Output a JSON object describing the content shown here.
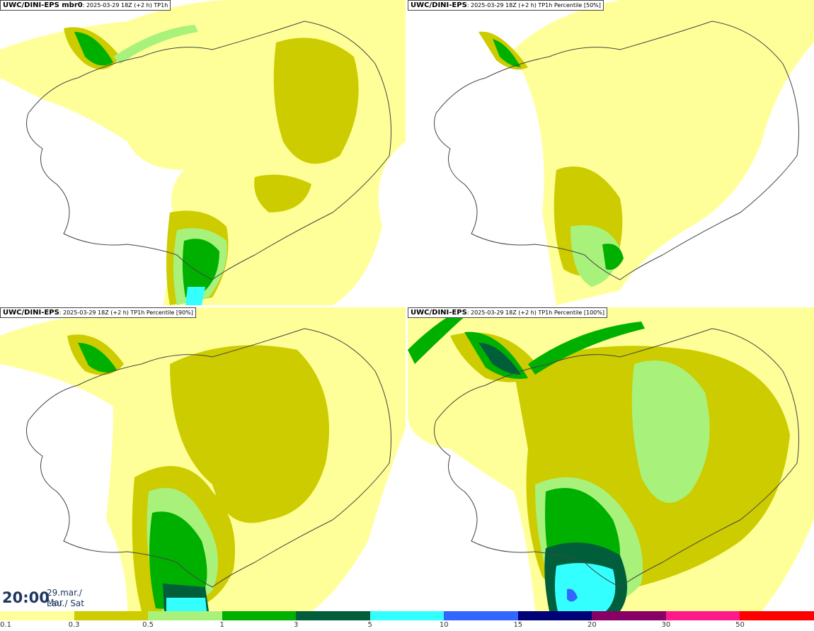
{
  "panels": [
    {
      "model": "UWC/DINI-EPS mbr0",
      "subtitle": ": 2025-03-29 18Z (+2 h) TP1h"
    },
    {
      "model": "UWC/DINI-EPS",
      "subtitle": ": 2025-03-29 18Z (+2 h) TP1h Percentile [50%]"
    },
    {
      "model": "UWC/DINI-EPS",
      "subtitle": ": 2025-03-29 18Z (+2 h) TP1h Percentile [90%]"
    },
    {
      "model": "UWC/DINI-EPS",
      "subtitle": ": 2025-03-29 18Z (+2 h) TP1h Percentile [100%]"
    }
  ],
  "valid_time": {
    "time": "20:00",
    "date_line1": "29.mar./ Mar",
    "date_line2": "Lau./ Sat"
  },
  "legend": {
    "labels": [
      "0.1",
      "0.3",
      "0.5",
      "1",
      "3",
      "5",
      "10",
      "15",
      "20",
      "30",
      "50"
    ],
    "colors": [
      "#ffff99",
      "#cccc00",
      "#a8f27c",
      "#00b000",
      "#005f3a",
      "#33ffff",
      "#3366ff",
      "#000077",
      "#880066",
      "#ff1a8c",
      "#ff0000"
    ]
  }
}
